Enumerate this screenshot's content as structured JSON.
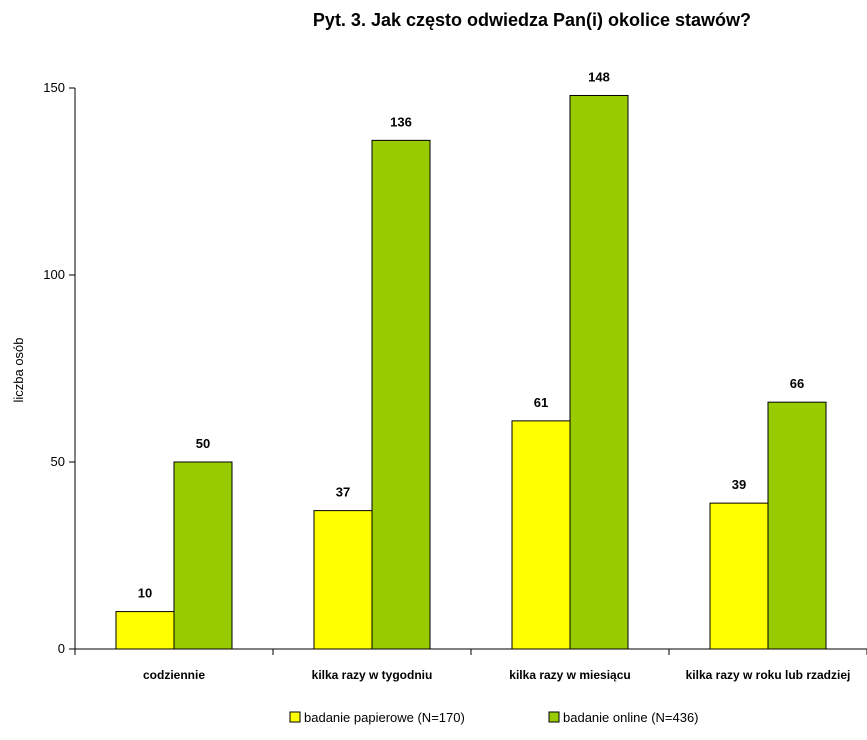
{
  "chart_data": {
    "type": "bar",
    "title": "Pyt. 3. Jak często odwiedza Pan(i) okolice stawów?",
    "xlabel": "",
    "ylabel": "liczba osób",
    "ylim": [
      0,
      150
    ],
    "yticks": [
      0,
      50,
      100,
      150
    ],
    "categories": [
      "codziennie",
      "kilka razy w tygodniu",
      "kilka razy w miesiącu",
      "kilka razy w roku lub rzadziej"
    ],
    "series": [
      {
        "name": "badanie papierowe (N=170)",
        "color": "#ffff00",
        "values": [
          10,
          37,
          61,
          39
        ]
      },
      {
        "name": "badanie online (N=436)",
        "color": "#99cc00",
        "values": [
          50,
          136,
          148,
          66
        ]
      }
    ],
    "grid": false,
    "legend_position": "bottom",
    "data_labels": true
  }
}
